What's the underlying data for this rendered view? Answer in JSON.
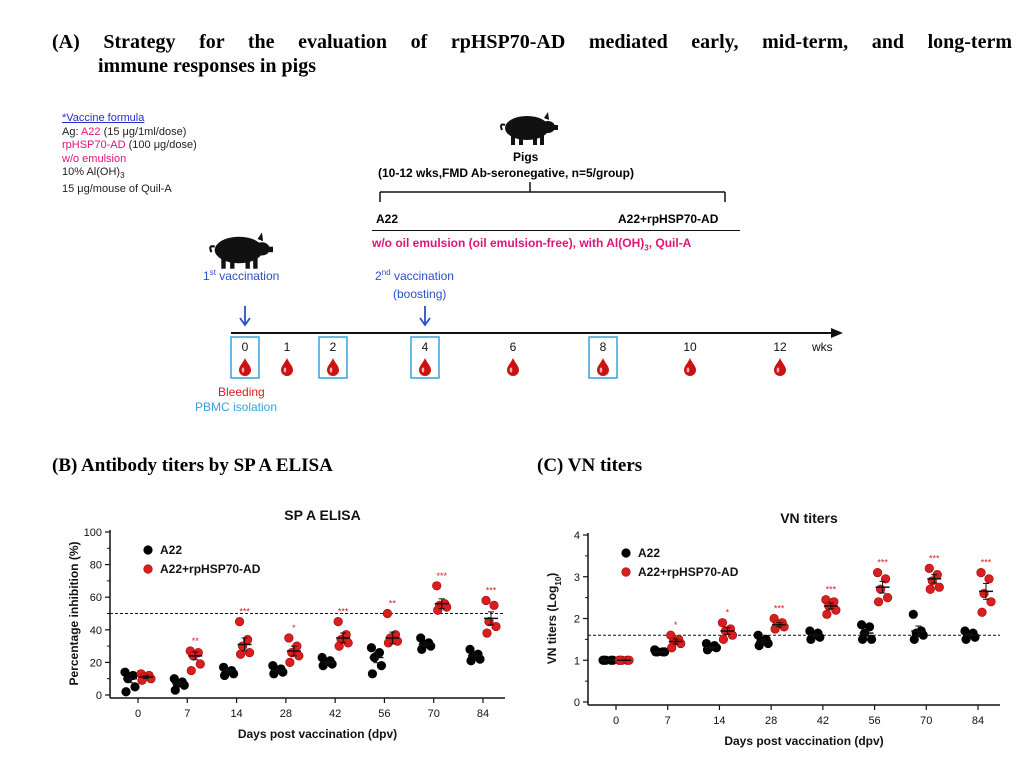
{
  "panel_a": {
    "title_line1": "(A)  Strategy  for  the  evaluation  of  rpHSP70-AD  mediated  early,  mid-term,  and  long-term",
    "title_line2": "immune  responses  in  pigs",
    "formula": {
      "heading": "*Vaccine formula",
      "ag_prefix": "Ag: ",
      "ag_name": "A22",
      "ag_dose": " (15 μg/1ml/dose)",
      "adj_name": "rpHSP70-AD",
      "adj_dose": " (100 μg/dose)",
      "emulsion": "w/o emulsion",
      "aloh": "10% Al(OH)",
      "aloh_sub": "3",
      "quil": "15 μg/mouse of Quil-A"
    },
    "pigs_label": "Pigs",
    "pigs_desc": "(10-12 wks,FMD Ab-seronegative, n=5/group)",
    "group_left": "A22",
    "group_right": "A22+rpHSP70-AD",
    "condition": "w/o oil emulsion (oil emulsion-free), with Al(OH)",
    "condition_sub": "3",
    "condition_end": ", Quil-A",
    "vacc1": "vaccination",
    "vacc1_num": "1",
    "vacc1_sup": "st",
    "vacc2_num": "2",
    "vacc2_sup": "nd",
    "vacc2": "vaccination",
    "boosting": "(boosting)",
    "timeline_ticks": [
      "0",
      "1",
      "2",
      "4",
      "6",
      "8",
      "10",
      "12"
    ],
    "timeline_unit": "wks",
    "bleeding": "Bleeding",
    "pbmc": "PBMC isolation",
    "colors": {
      "pink": "#e0137a",
      "blue": "#2a4fc8",
      "red": "#d91c1c",
      "lightblue": "#3aa0d8",
      "blood": "#cc1111"
    }
  },
  "panel_b_title": "(B)  Antibody  titers  by  SP  A  ELISA",
  "panel_c_title": "(C)  VN  titers",
  "chart_data": [
    {
      "type": "scatter",
      "title": "SP A ELISA",
      "xlabel": "Days post vaccination (dpv)",
      "ylabel": "Percentage inhibition (%)",
      "ylim": [
        0,
        100
      ],
      "yticks": [
        "0",
        "20",
        "40",
        "60",
        "80",
        "100"
      ],
      "categories": [
        "0",
        "7",
        "14",
        "28",
        "42",
        "56",
        "70",
        "84"
      ],
      "threshold": 50,
      "significance": [
        "",
        "**",
        "***",
        "*",
        "***",
        "**",
        "***",
        "***"
      ],
      "series": [
        {
          "name": "A22",
          "color": "#000000",
          "values": [
            [
              14,
              12,
              10,
              5,
              2
            ],
            [
              10,
              8,
              7,
              6,
              3
            ],
            [
              17,
              15,
              14,
              13,
              12
            ],
            [
              18,
              16,
              15,
              14,
              13
            ],
            [
              23,
              21,
              20,
              19,
              18
            ],
            [
              29,
              26,
              23,
              18,
              13
            ],
            [
              35,
              32,
              31,
              30,
              28
            ],
            [
              28,
              25,
              24,
              22,
              21
            ]
          ],
          "mean": [
            10,
            7,
            15,
            15,
            20,
            23,
            31,
            24
          ]
        },
        {
          "name": "A22+rpHSP70-AD",
          "color": "#d62020",
          "values": [
            [
              13,
              12,
              11,
              10,
              9
            ],
            [
              27,
              26,
              24,
              19,
              15
            ],
            [
              45,
              34,
              30,
              26,
              25
            ],
            [
              35,
              30,
              26,
              24,
              20
            ],
            [
              45,
              37,
              34,
              32,
              30
            ],
            [
              50,
              37,
              35,
              33,
              32
            ],
            [
              67,
              56,
              55,
              54,
              52
            ],
            [
              58,
              55,
              45,
              42,
              38
            ]
          ],
          "mean": [
            11,
            24,
            31,
            27,
            35,
            35,
            56,
            47
          ]
        }
      ]
    },
    {
      "type": "scatter",
      "title": "VN titers",
      "xlabel": "Days post vaccination (dpv)",
      "ylabel": "VN titers (Log",
      "ylabel_sub": "10",
      "ylabel_end": ")",
      "ylim": [
        0,
        4
      ],
      "yticks": [
        "0",
        "1",
        "2",
        "3",
        "4"
      ],
      "categories": [
        "0",
        "7",
        "14",
        "28",
        "42",
        "56",
        "70",
        "84"
      ],
      "threshold": 1.6,
      "significance": [
        "",
        "*",
        "*",
        "***",
        "***",
        "***",
        "***",
        "***"
      ],
      "series": [
        {
          "name": "A22",
          "color": "#000000",
          "values": [
            [
              1.0,
              1.0,
              1.0,
              1.0,
              1.0
            ],
            [
              1.25,
              1.2,
              1.2,
              1.2,
              1.2
            ],
            [
              1.4,
              1.35,
              1.3,
              1.3,
              1.25
            ],
            [
              1.6,
              1.5,
              1.45,
              1.4,
              1.35
            ],
            [
              1.7,
              1.65,
              1.6,
              1.55,
              1.5
            ],
            [
              1.85,
              1.8,
              1.65,
              1.5,
              1.5
            ],
            [
              2.1,
              1.7,
              1.65,
              1.6,
              1.5
            ],
            [
              1.7,
              1.65,
              1.6,
              1.55,
              1.5
            ]
          ],
          "mean": [
            1.0,
            1.2,
            1.3,
            1.45,
            1.6,
            1.65,
            1.7,
            1.6
          ]
        },
        {
          "name": "A22+rpHSP70-AD",
          "color": "#d62020",
          "values": [
            [
              1.0,
              1.0,
              1.0,
              1.0,
              1.0
            ],
            [
              1.6,
              1.5,
              1.45,
              1.4,
              1.3
            ],
            [
              1.9,
              1.75,
              1.7,
              1.6,
              1.5
            ],
            [
              2.0,
              1.9,
              1.85,
              1.8,
              1.75
            ],
            [
              2.45,
              2.4,
              2.3,
              2.2,
              2.1
            ],
            [
              3.1,
              2.95,
              2.7,
              2.5,
              2.4
            ],
            [
              3.2,
              3.05,
              2.9,
              2.75,
              2.7
            ],
            [
              3.1,
              2.95,
              2.6,
              2.4,
              2.15
            ]
          ],
          "mean": [
            1.0,
            1.45,
            1.7,
            1.85,
            2.3,
            2.75,
            2.95,
            2.65
          ]
        }
      ]
    }
  ]
}
